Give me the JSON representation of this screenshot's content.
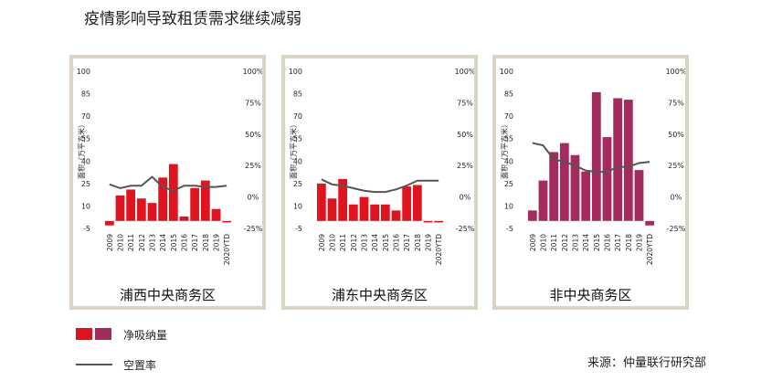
{
  "title": "疫情影响导致租赁需求继续减弱",
  "legend": {
    "net_absorption": "净吸纳量",
    "vacancy": "空置率",
    "colors": [
      "#e0141e",
      "#a52a5e"
    ]
  },
  "source": "来源：仲量联行研究部",
  "chart_data": [
    {
      "type": "bar",
      "title": "浦西中央商务区",
      "categories": [
        "2009",
        "2010",
        "2011",
        "2012",
        "2013",
        "2014",
        "2015",
        "2016",
        "2017",
        "2018",
        "2019",
        "2020YTD"
      ],
      "series": [
        {
          "name": "净吸纳量",
          "axis": "left",
          "values": [
            -3,
            17,
            21,
            15,
            12,
            29,
            38,
            3,
            22,
            27,
            8,
            -1
          ],
          "color": "#e0141e"
        },
        {
          "name": "空置率",
          "axis": "right",
          "type": "line",
          "values": [
            10,
            7,
            9,
            9,
            16,
            8,
            5,
            9,
            9,
            8,
            8,
            9
          ],
          "color": "#555555"
        }
      ],
      "ylabel": "面积（万平方米）",
      "ylim": [
        -5,
        100
      ],
      "yticks": [
        -5,
        10,
        25,
        40,
        55,
        70,
        85,
        100
      ],
      "y2lim": [
        -25,
        100
      ],
      "y2ticks": [
        "-25%",
        "0%",
        "25%",
        "50%",
        "75%",
        "100%"
      ],
      "grid": false
    },
    {
      "type": "bar",
      "title": "浦东中央商务区",
      "categories": [
        "2009",
        "2010",
        "2011",
        "2012",
        "2013",
        "2014",
        "2015",
        "2016",
        "2017",
        "2018",
        "2019",
        "2020YTD"
      ],
      "series": [
        {
          "name": "净吸纳量",
          "axis": "left",
          "values": [
            25,
            15,
            28,
            11,
            16,
            11,
            11,
            7,
            23,
            24,
            -1,
            -1
          ],
          "color": "#e0141e"
        },
        {
          "name": "空置率",
          "axis": "right",
          "type": "line",
          "values": [
            14,
            10,
            9,
            7,
            5,
            4,
            4,
            6,
            9,
            13,
            13,
            13
          ],
          "color": "#555555"
        }
      ],
      "ylabel": "面积（万平方米）",
      "ylim": [
        -5,
        100
      ],
      "yticks": [
        -5,
        10,
        25,
        40,
        55,
        70,
        85,
        100
      ],
      "y2lim": [
        -25,
        100
      ],
      "y2ticks": [
        "-25%",
        "0%",
        "25%",
        "50%",
        "75%",
        "100%"
      ],
      "grid": false
    },
    {
      "type": "bar",
      "title": "非中央商务区",
      "categories": [
        "2009",
        "2010",
        "2011",
        "2012",
        "2013",
        "2014",
        "2015",
        "2016",
        "2017",
        "2018",
        "2019",
        "2020YTD"
      ],
      "series": [
        {
          "name": "净吸纳量",
          "axis": "left",
          "values": [
            7,
            27,
            46,
            52,
            44,
            33,
            86,
            56,
            82,
            81,
            34,
            -3
          ],
          "color": "#a52a5e"
        },
        {
          "name": "空置率",
          "axis": "right",
          "type": "line",
          "values": [
            43,
            41,
            30,
            28,
            25,
            21,
            20,
            20,
            24,
            24,
            27,
            28
          ],
          "color": "#555555"
        }
      ],
      "ylabel": "面积（万平方米）",
      "ylim": [
        -5,
        100
      ],
      "yticks": [
        -5,
        10,
        25,
        40,
        55,
        70,
        85,
        100
      ],
      "y2lim": [
        -25,
        100
      ],
      "y2ticks": [
        "-25%",
        "0%",
        "25%",
        "50%",
        "75%",
        "100%"
      ],
      "grid": false
    }
  ]
}
